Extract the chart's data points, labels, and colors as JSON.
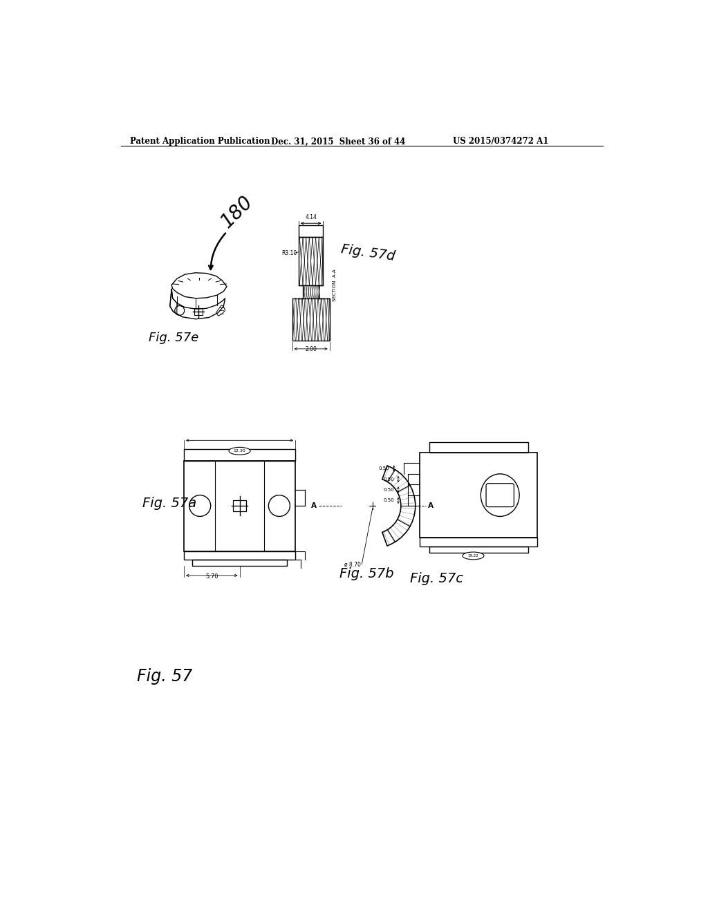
{
  "background_color": "#ffffff",
  "header_left": "Patent Application Publication",
  "header_center": "Dec. 31, 2015  Sheet 36 of 44",
  "header_right": "US 2015/0374272 A1",
  "footer_label": "Fig. 57",
  "fig57e_label": "Fig. 57e",
  "fig57d_label": "Fig. 57d",
  "fig57a_label": "Fig. 57a",
  "fig57b_label": "Fig. 57b",
  "fig57c_label": "Fig. 57c",
  "ref_num": "180",
  "dim_4": "4.14",
  "dim_r310": "R3.10",
  "dim_200": "2.00",
  "dim_1390": "12.30",
  "dim_570": "5.70",
  "dim_870": "ø 8.70",
  "dim_050": "0.50",
  "section_label": "SECTION  A-A"
}
